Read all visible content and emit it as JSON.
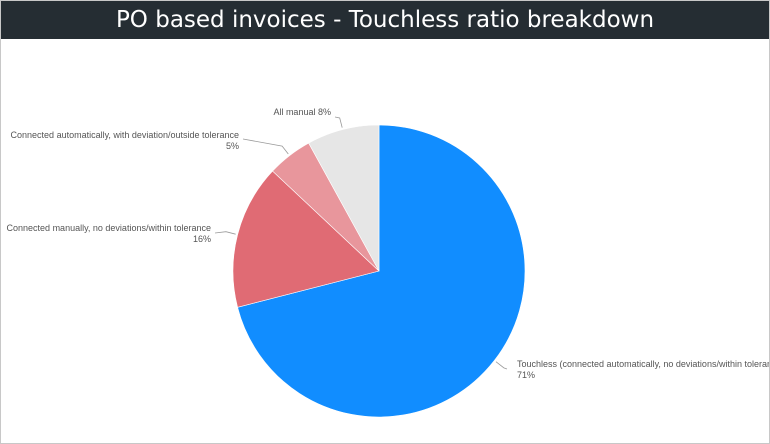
{
  "header": {
    "title": "PO based invoices - Touchless ratio breakdown"
  },
  "chart_data": {
    "type": "pie",
    "start_angle_deg": 0,
    "direction": "clockwise",
    "legend": "none",
    "slices": [
      {
        "name": "Touchless (connected automatically, no deviations/within tolerance)",
        "value": 71,
        "value_label": "71%",
        "color": "#118dff"
      },
      {
        "name": "Connected manually, no deviations/within tolerance",
        "value": 16,
        "value_label": "16%",
        "color": "#e06b74"
      },
      {
        "name": "Connected automatically, with deviation/outside tolerance",
        "value": 5,
        "value_label": "5%",
        "color": "#e8969c"
      },
      {
        "name": "All manual",
        "value": 8,
        "value_label": "8%",
        "color": "#e6e6e6"
      }
    ]
  }
}
